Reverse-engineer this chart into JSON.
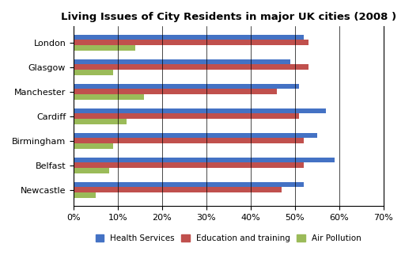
{
  "title": "Living Issues of City Residents in major UK cities (2008 )",
  "cities": [
    "London",
    "Glasgow",
    "Manchester",
    "Cardiff",
    "Birmingham",
    "Belfast",
    "Newcastle"
  ],
  "health_services": [
    52,
    49,
    51,
    57,
    55,
    59,
    52
  ],
  "education_training": [
    53,
    53,
    46,
    51,
    52,
    52,
    47
  ],
  "air_pollution": [
    14,
    9,
    16,
    12,
    9,
    8,
    5
  ],
  "color_health": "#4472C4",
  "color_education": "#C0504D",
  "color_air": "#9BBB59",
  "xlim": [
    0,
    70
  ],
  "xtick_labels": [
    "0%",
    "10%",
    "20%",
    "30%",
    "40%",
    "50%",
    "60%",
    "70%"
  ],
  "xtick_vals": [
    0,
    10,
    20,
    30,
    40,
    50,
    60,
    70
  ],
  "legend_health": "Health Services",
  "legend_education": "Education and training",
  "legend_air": "Air Pollution",
  "background_color": "#FFFFFF",
  "bar_height": 0.22
}
